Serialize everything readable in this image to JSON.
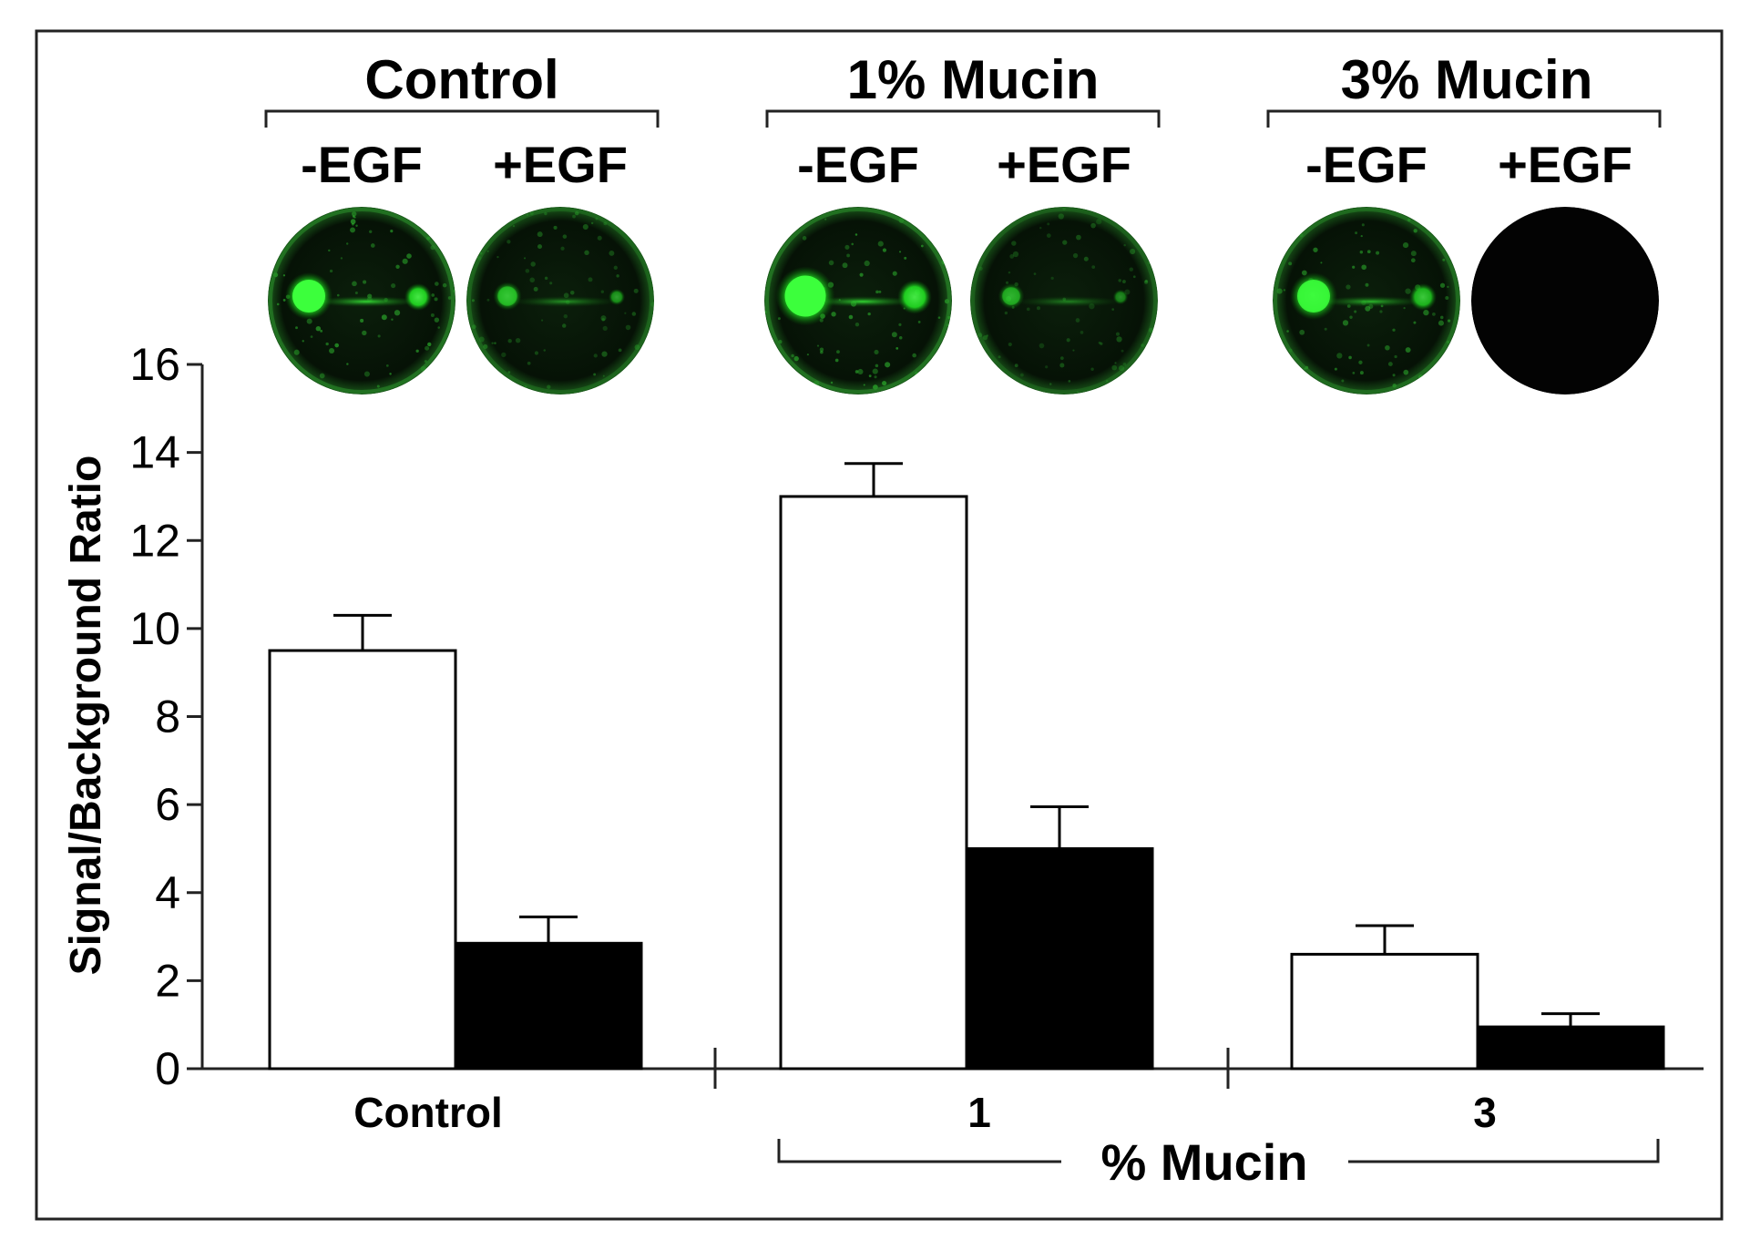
{
  "chart_data": {
    "type": "bar",
    "ylabel": "Signal/Background Ratio",
    "ylim": [
      0,
      16
    ],
    "yticks": [
      0,
      2,
      4,
      6,
      8,
      10,
      12,
      14,
      16
    ],
    "categories": [
      "Control",
      "1",
      "3"
    ],
    "xlabel": "% Mucin",
    "group_titles": [
      "Control",
      "1% Mucin",
      "3% Mucin"
    ],
    "series": [
      {
        "name": "-EGF",
        "color": "#ffffff",
        "values": [
          9.5,
          13.0,
          2.6
        ],
        "errors": [
          0.8,
          0.75,
          0.65
        ]
      },
      {
        "name": "+EGF",
        "color": "#000000",
        "values": [
          2.85,
          5.0,
          0.95
        ],
        "errors": [
          0.6,
          0.95,
          0.3
        ]
      }
    ],
    "images": [
      {
        "group": 0,
        "series": 0,
        "blob_size": 1.0,
        "intensity": 1.0
      },
      {
        "group": 0,
        "series": 1,
        "blob_size": 0.6,
        "intensity": 0.65
      },
      {
        "group": 1,
        "series": 0,
        "blob_size": 1.25,
        "intensity": 1.0
      },
      {
        "group": 1,
        "series": 1,
        "blob_size": 0.55,
        "intensity": 0.55
      },
      {
        "group": 2,
        "series": 0,
        "blob_size": 1.0,
        "intensity": 0.85
      },
      {
        "group": 2,
        "series": 1,
        "blob_size": 0.0,
        "intensity": 0.0
      }
    ]
  }
}
